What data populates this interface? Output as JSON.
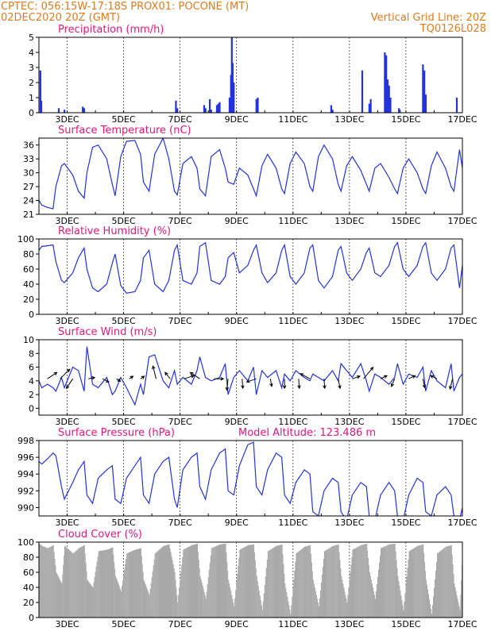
{
  "header": {
    "line1_left": "CPTEC:   056:15W-17:18S   PROX01: POCONE (MT)",
    "line2_left": "02DEC2020 20Z (GMT)",
    "line2_right": "Vertical Grid Line: 20Z",
    "line3_right": "TQ0126L028"
  },
  "colors": {
    "header": "#e07a1f",
    "title": "#e0177a",
    "line": "#2233dd",
    "cloud": "#a9a9a9"
  },
  "x_axis": {
    "start_day": 2,
    "end_day": 17,
    "tick_labels": [
      {
        "day": 3,
        "label": "3DEC"
      },
      {
        "day": 5,
        "label": "5DEC"
      },
      {
        "day": 7,
        "label": "7DEC"
      },
      {
        "day": 9,
        "label": "9DEC"
      },
      {
        "day": 11,
        "label": "11DEC"
      },
      {
        "day": 13,
        "label": "13DEC"
      },
      {
        "day": 15,
        "label": "15DEC"
      },
      {
        "day": 17,
        "label": "17DEC"
      }
    ]
  },
  "chart_data": [
    {
      "id": "precip",
      "type": "bar",
      "title": "Precipitation (mm/h)",
      "ylim": [
        0,
        5
      ],
      "yticks": [
        0,
        1,
        2,
        3,
        4,
        5
      ],
      "x": [
        2.05,
        2.08,
        2.7,
        2.9,
        3.55,
        3.6,
        6.85,
        6.9,
        7.85,
        7.9,
        8.05,
        8.1,
        8.3,
        8.35,
        8.4,
        8.75,
        8.8,
        8.83,
        8.86,
        8.9,
        9.7,
        9.75,
        12.35,
        12.4,
        13.45,
        13.7,
        13.75,
        14.25,
        14.3,
        14.35,
        14.4,
        14.45,
        14.75,
        14.78,
        15.6,
        15.65,
        15.7,
        16.8
      ],
      "values": [
        2.8,
        0.8,
        0.3,
        0.2,
        0.4,
        0.3,
        0.8,
        0.3,
        0.5,
        0.3,
        0.9,
        0.2,
        0.5,
        0.6,
        0.7,
        1.0,
        2.5,
        5.0,
        3.3,
        2.0,
        0.9,
        1.0,
        0.5,
        0.2,
        2.8,
        0.6,
        0.9,
        4.0,
        3.8,
        2.2,
        1.8,
        1.0,
        0.3,
        0.2,
        3.2,
        2.8,
        1.2,
        1.0
      ]
    },
    {
      "id": "temp",
      "type": "line",
      "title": "Surface Temperature (nC)",
      "ylim": [
        21,
        37.5
      ],
      "yticks": [
        21,
        24,
        27,
        30,
        33,
        36
      ],
      "x": [
        2.0,
        2.1,
        2.3,
        2.5,
        2.6,
        2.8,
        2.9,
        3.2,
        3.4,
        3.6,
        3.7,
        3.9,
        4.1,
        4.4,
        4.6,
        4.7,
        4.9,
        5.1,
        5.4,
        5.6,
        5.7,
        5.9,
        6.1,
        6.4,
        6.6,
        6.8,
        6.9,
        7.1,
        7.4,
        7.6,
        7.7,
        7.9,
        8.1,
        8.4,
        8.6,
        8.7,
        8.9,
        9.1,
        9.4,
        9.6,
        9.7,
        9.9,
        10.1,
        10.4,
        10.6,
        10.7,
        10.9,
        11.1,
        11.4,
        11.6,
        11.7,
        11.9,
        12.1,
        12.4,
        12.6,
        12.7,
        12.9,
        13.1,
        13.4,
        13.6,
        13.7,
        13.9,
        14.1,
        14.4,
        14.6,
        14.7,
        14.9,
        15.1,
        15.4,
        15.6,
        15.7,
        15.9,
        16.1,
        16.4,
        16.6,
        16.7,
        16.9,
        17.0
      ],
      "values": [
        24.0,
        23.0,
        22.5,
        22.2,
        27.0,
        31.5,
        32.0,
        29.5,
        26.0,
        24.5,
        30.0,
        35.5,
        36.0,
        33.0,
        27.5,
        25.0,
        33.5,
        36.8,
        37.0,
        34.0,
        28.0,
        26.0,
        34.0,
        37.5,
        33.0,
        26.0,
        25.2,
        32.0,
        33.5,
        31.0,
        26.5,
        25.0,
        33.5,
        35.0,
        31.0,
        28.0,
        27.5,
        31.0,
        29.5,
        26.5,
        25.0,
        31.5,
        34.0,
        31.0,
        26.5,
        25.5,
        32.0,
        34.5,
        32.0,
        27.0,
        26.0,
        33.5,
        36.0,
        33.0,
        27.5,
        26.0,
        31.5,
        33.5,
        30.5,
        27.5,
        26.0,
        31.0,
        32.0,
        29.0,
        26.5,
        25.5,
        31.0,
        33.0,
        30.0,
        26.5,
        25.5,
        31.5,
        34.5,
        31.0,
        27.0,
        26.0,
        35.0,
        31.0
      ]
    },
    {
      "id": "rh",
      "type": "line",
      "title": "Relative Humidity (%)",
      "ylim": [
        0,
        100
      ],
      "yticks": [
        0,
        20,
        40,
        60,
        80,
        100
      ],
      "x": [
        2.0,
        2.1,
        2.3,
        2.5,
        2.6,
        2.8,
        2.9,
        3.2,
        3.4,
        3.6,
        3.7,
        3.9,
        4.1,
        4.4,
        4.6,
        4.7,
        4.9,
        5.1,
        5.4,
        5.6,
        5.7,
        5.9,
        6.1,
        6.4,
        6.6,
        6.8,
        6.9,
        7.1,
        7.4,
        7.6,
        7.7,
        7.9,
        8.1,
        8.4,
        8.6,
        8.7,
        8.9,
        9.1,
        9.4,
        9.6,
        9.7,
        9.9,
        10.1,
        10.4,
        10.6,
        10.7,
        10.9,
        11.1,
        11.4,
        11.6,
        11.7,
        11.9,
        12.1,
        12.4,
        12.6,
        12.7,
        12.9,
        13.1,
        13.4,
        13.6,
        13.7,
        13.9,
        14.1,
        14.4,
        14.6,
        14.7,
        14.9,
        15.1,
        15.4,
        15.6,
        15.7,
        15.9,
        16.1,
        16.4,
        16.6,
        16.7,
        16.9,
        17.0
      ],
      "values": [
        85.0,
        90.0,
        91.0,
        92.0,
        70.0,
        45.0,
        42.0,
        55.0,
        75.0,
        88.0,
        60.0,
        35.0,
        30.0,
        40.0,
        68.0,
        80.0,
        38.0,
        28.0,
        30.0,
        45.0,
        75.0,
        85.0,
        40.0,
        30.0,
        45.0,
        85.0,
        92.0,
        45.0,
        40.0,
        55.0,
        90.0,
        95.0,
        45.0,
        40.0,
        50.0,
        75.0,
        82.0,
        55.0,
        65.0,
        85.0,
        92.0,
        55.0,
        42.0,
        55.0,
        85.0,
        92.0,
        50.0,
        40.0,
        55.0,
        88.0,
        92.0,
        45.0,
        35.0,
        50.0,
        85.0,
        90.0,
        55.0,
        45.0,
        60.0,
        82.0,
        88.0,
        55.0,
        50.0,
        65.0,
        90.0,
        95.0,
        60.0,
        50.0,
        65.0,
        90.0,
        95.0,
        55.0,
        45.0,
        60.0,
        88.0,
        92.0,
        35.0,
        65.0
      ]
    },
    {
      "id": "wind",
      "type": "line",
      "title": "Surface Wind (m/s)",
      "ylim": [
        -1,
        10
      ],
      "yticks": [
        0,
        2,
        4,
        6,
        8,
        10
      ],
      "x": [
        2.0,
        2.1,
        2.3,
        2.5,
        2.6,
        2.8,
        2.9,
        3.2,
        3.4,
        3.6,
        3.7,
        3.9,
        4.1,
        4.4,
        4.6,
        4.7,
        4.9,
        5.1,
        5.4,
        5.6,
        5.7,
        5.9,
        6.1,
        6.4,
        6.6,
        6.8,
        6.9,
        7.1,
        7.4,
        7.6,
        7.7,
        7.9,
        8.1,
        8.4,
        8.6,
        8.7,
        8.9,
        9.1,
        9.4,
        9.6,
        9.7,
        9.9,
        10.1,
        10.4,
        10.6,
        10.7,
        10.9,
        11.1,
        11.4,
        11.6,
        11.7,
        11.9,
        12.1,
        12.4,
        12.6,
        12.7,
        12.9,
        13.1,
        13.4,
        13.6,
        13.7,
        13.9,
        14.1,
        14.4,
        14.6,
        14.7,
        14.9,
        15.1,
        15.4,
        15.6,
        15.7,
        15.9,
        16.1,
        16.4,
        16.6,
        16.7,
        16.9,
        17.0
      ],
      "values": [
        4.0,
        3.0,
        3.5,
        3.0,
        2.5,
        4.5,
        3.0,
        6.0,
        5.5,
        2.5,
        9.0,
        3.5,
        3.0,
        4.5,
        2.0,
        2.5,
        4.5,
        3.0,
        0.5,
        3.5,
        2.0,
        7.5,
        7.8,
        4.0,
        3.0,
        5.5,
        3.5,
        4.5,
        3.5,
        5.5,
        7.5,
        4.5,
        4.0,
        4.5,
        6.5,
        2.0,
        4.5,
        5.5,
        4.0,
        6.0,
        2.0,
        5.5,
        4.5,
        5.5,
        3.0,
        5.0,
        4.0,
        5.5,
        4.5,
        4.0,
        5.0,
        4.5,
        4.0,
        5.5,
        4.0,
        6.5,
        5.5,
        4.5,
        6.5,
        4.0,
        2.5,
        5.0,
        4.5,
        3.5,
        4.5,
        6.5,
        3.5,
        5.0,
        4.5,
        6.0,
        2.5,
        5.5,
        4.0,
        3.0,
        6.5,
        2.5,
        4.5,
        5.0
      ]
    },
    {
      "id": "pressure",
      "type": "line",
      "title": "Surface Pressure (hPa)",
      "ylim": [
        989,
        998
      ],
      "yticks": [
        990,
        992,
        994,
        996,
        998
      ],
      "x": [
        2.0,
        2.1,
        2.3,
        2.5,
        2.6,
        2.8,
        2.9,
        3.2,
        3.4,
        3.6,
        3.7,
        3.9,
        4.1,
        4.4,
        4.6,
        4.7,
        4.9,
        5.1,
        5.4,
        5.6,
        5.7,
        5.9,
        6.1,
        6.4,
        6.6,
        6.8,
        6.9,
        7.1,
        7.4,
        7.6,
        7.7,
        7.9,
        8.1,
        8.4,
        8.6,
        8.7,
        8.9,
        9.1,
        9.4,
        9.6,
        9.7,
        9.9,
        10.1,
        10.4,
        10.6,
        10.7,
        10.9,
        11.1,
        11.4,
        11.6,
        11.7,
        11.9,
        12.1,
        12.4,
        12.6,
        12.7,
        12.9,
        13.1,
        13.4,
        13.6,
        13.7,
        13.9,
        14.1,
        14.4,
        14.6,
        14.7,
        14.9,
        15.1,
        15.4,
        15.6,
        15.7,
        15.9,
        16.1,
        16.4,
        16.6,
        16.7,
        16.9,
        17.0
      ],
      "values": [
        995.5,
        995.2,
        995.8,
        996.5,
        996.2,
        992.5,
        991.0,
        993.0,
        994.5,
        995.5,
        991.5,
        990.5,
        993.5,
        994.5,
        995.0,
        991.0,
        990.5,
        993.5,
        995.0,
        996.0,
        991.5,
        990.5,
        994.0,
        995.5,
        996.0,
        991.0,
        990.0,
        994.5,
        996.0,
        996.5,
        992.5,
        991.0,
        994.5,
        996.5,
        997.0,
        992.0,
        991.5,
        995.0,
        997.5,
        997.8,
        992.5,
        991.5,
        994.5,
        996.5,
        996.0,
        991.5,
        990.5,
        993.0,
        994.5,
        994.0,
        989.5,
        989.0,
        992.0,
        993.5,
        993.0,
        989.5,
        988.5,
        991.5,
        993.0,
        992.5,
        989.0,
        988.5,
        991.5,
        993.0,
        992.0,
        989.0,
        988.5,
        991.5,
        993.5,
        993.0,
        989.5,
        989.0,
        991.5,
        992.5,
        991.5,
        989.0,
        988.5,
        990.0
      ]
    },
    {
      "id": "cloud",
      "type": "area",
      "title": "Cloud Cover (%)",
      "ylim": [
        0,
        100
      ],
      "yticks": [
        0,
        20,
        40,
        60,
        80,
        100
      ],
      "x": [
        2.0,
        2.1,
        2.3,
        2.5,
        2.6,
        2.8,
        2.9,
        3.2,
        3.4,
        3.6,
        3.7,
        3.9,
        4.1,
        4.4,
        4.6,
        4.7,
        4.9,
        5.1,
        5.4,
        5.6,
        5.7,
        5.9,
        6.1,
        6.4,
        6.6,
        6.8,
        6.9,
        7.1,
        7.4,
        7.6,
        7.7,
        7.9,
        8.1,
        8.4,
        8.6,
        8.7,
        8.9,
        9.1,
        9.4,
        9.6,
        9.7,
        9.9,
        10.1,
        10.4,
        10.6,
        10.7,
        10.9,
        11.1,
        11.4,
        11.6,
        11.7,
        11.9,
        12.1,
        12.4,
        12.6,
        12.7,
        12.9,
        13.1,
        13.4,
        13.6,
        13.7,
        13.9,
        14.1,
        14.4,
        14.6,
        14.7,
        14.9,
        15.1,
        15.4,
        15.6,
        15.7,
        15.9,
        16.1,
        16.4,
        16.6,
        16.7,
        16.9,
        17.0
      ],
      "values": [
        98.0,
        95.0,
        92.0,
        96.0,
        60.0,
        45.0,
        95.0,
        85.0,
        92.0,
        96.0,
        50.0,
        40.0,
        88.0,
        90.0,
        93.0,
        55.0,
        35.0,
        85.0,
        90.0,
        92.0,
        50.0,
        30.0,
        85.0,
        95.0,
        97.0,
        60.0,
        20.0,
        90.0,
        96.0,
        98.0,
        55.0,
        25.0,
        92.0,
        97.0,
        98.0,
        50.0,
        15.0,
        90.0,
        96.0,
        97.0,
        55.0,
        10.0,
        88.0,
        95.0,
        97.0,
        45.0,
        5.0,
        85.0,
        94.0,
        96.0,
        50.0,
        15.0,
        88.0,
        95.0,
        97.0,
        55.0,
        20.0,
        90.0,
        96.0,
        98.0,
        60.0,
        25.0,
        92.0,
        97.0,
        98.0,
        55.0,
        10.0,
        88.0,
        95.0,
        97.0,
        50.0,
        5.0,
        85.0,
        94.0,
        96.0,
        45.0,
        10.0,
        90.0
      ]
    }
  ],
  "pressure_extra": {
    "label": "Model Altitude:  123.486  m"
  },
  "wind_vectors": [
    {
      "x": 2.3,
      "u": 1.5,
      "v": 1.0
    },
    {
      "x": 2.75,
      "u": 1.5,
      "v": 1.5
    },
    {
      "x": 3.2,
      "u": -1.0,
      "v": -1.5
    },
    {
      "x": 3.75,
      "u": 1.0,
      "v": 0.2
    },
    {
      "x": 4.25,
      "u": 1.0,
      "v": -0.5
    },
    {
      "x": 4.75,
      "u": 0.6,
      "v": -0.4
    },
    {
      "x": 5.2,
      "u": 0.6,
      "v": 0.4
    },
    {
      "x": 5.6,
      "u": 0.6,
      "v": 0.4
    },
    {
      "x": 6.15,
      "u": -0.5,
      "v": 2.0
    },
    {
      "x": 6.65,
      "u": -0.8,
      "v": 1.0
    },
    {
      "x": 7.15,
      "u": 1.5,
      "v": 0.5
    },
    {
      "x": 7.7,
      "u": -1.5,
      "v": 1.0
    },
    {
      "x": 8.2,
      "u": 1.5,
      "v": 0.0
    },
    {
      "x": 8.7,
      "u": -0.2,
      "v": -1.8
    },
    {
      "x": 9.2,
      "u": 0.1,
      "v": -1.5
    },
    {
      "x": 9.7,
      "u": -1.5,
      "v": -0.5
    },
    {
      "x": 10.2,
      "u": 0.2,
      "v": -1.2
    },
    {
      "x": 10.7,
      "u": 0.0,
      "v": -1.5
    },
    {
      "x": 11.2,
      "u": 0.1,
      "v": -1.5
    },
    {
      "x": 11.6,
      "u": -1.5,
      "v": 0.8
    },
    {
      "x": 12.1,
      "u": 0.1,
      "v": -1.5
    },
    {
      "x": 12.6,
      "u": 0.3,
      "v": -1.5
    },
    {
      "x": 13.1,
      "u": 1.2,
      "v": 0.4
    },
    {
      "x": 13.5,
      "u": 1.5,
      "v": 1.8
    },
    {
      "x": 14.1,
      "u": 1.0,
      "v": 0.5
    },
    {
      "x": 14.6,
      "u": -0.5,
      "v": -1.2
    },
    {
      "x": 15.1,
      "u": 1.0,
      "v": 0.5
    },
    {
      "x": 15.6,
      "u": 0.3,
      "v": -1.4
    },
    {
      "x": 16.1,
      "u": -1.0,
      "v": 0.5
    },
    {
      "x": 16.65,
      "u": -0.4,
      "v": -1.6
    }
  ]
}
